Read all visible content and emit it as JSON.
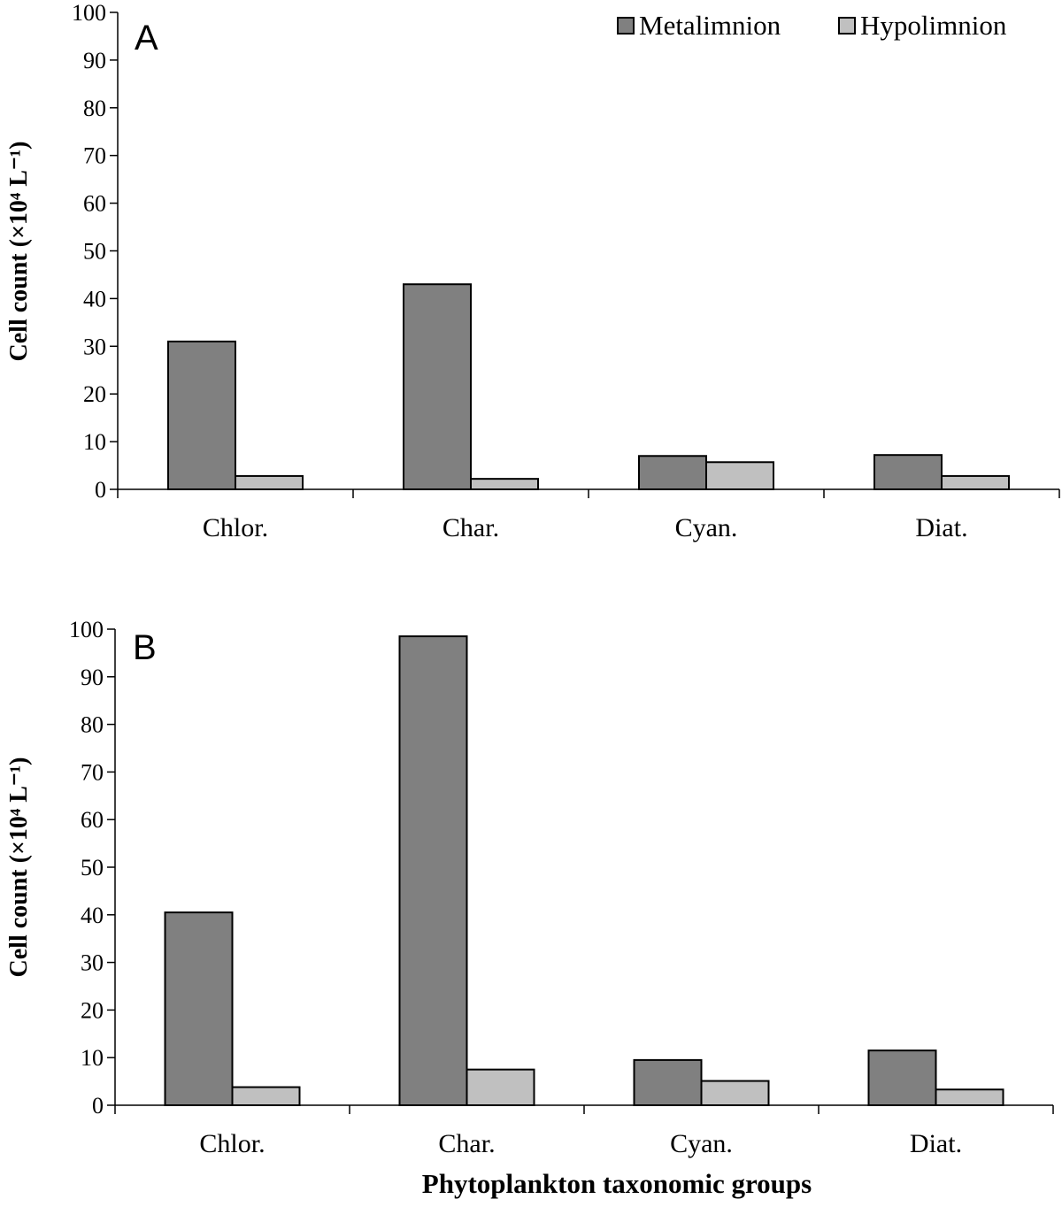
{
  "colors": {
    "metalimnion": "#808080",
    "hypolimnion": "#c0c0c0"
  },
  "legend": {
    "position": "top-right",
    "items": [
      "Metalimnion",
      "Hypolimnion"
    ]
  },
  "xlabel": "Phytoplankton taxonomic groups",
  "chart_data": [
    {
      "type": "bar",
      "panel": "A",
      "categories": [
        "Chlor.",
        "Char.",
        "Cyan.",
        "Diat."
      ],
      "series": [
        {
          "name": "Metalimnion",
          "values": [
            31,
            43,
            7,
            7.2
          ]
        },
        {
          "name": "Hypolimnion",
          "values": [
            2.8,
            2.2,
            5.7,
            2.8
          ]
        }
      ],
      "ylabel": "Cell count (×10⁴ L⁻¹)",
      "xlabel": "",
      "ylim": [
        0,
        100
      ],
      "yticks": [
        0,
        10,
        20,
        30,
        40,
        50,
        60,
        70,
        80,
        90,
        100
      ],
      "grid": false,
      "legend": "top-right"
    },
    {
      "type": "bar",
      "panel": "B",
      "categories": [
        "Chlor.",
        "Char.",
        "Cyan.",
        "Diat."
      ],
      "series": [
        {
          "name": "Metalimnion",
          "values": [
            40.5,
            98.5,
            9.5,
            11.5
          ]
        },
        {
          "name": "Hypolimnion",
          "values": [
            3.8,
            7.5,
            5.1,
            3.3
          ]
        }
      ],
      "ylabel": "Cell count (×10⁴ L⁻¹)",
      "xlabel": "Phytoplankton taxonomic groups",
      "ylim": [
        0,
        100
      ],
      "yticks": [
        0,
        10,
        20,
        30,
        40,
        50,
        60,
        70,
        80,
        90,
        100
      ],
      "grid": false
    }
  ]
}
